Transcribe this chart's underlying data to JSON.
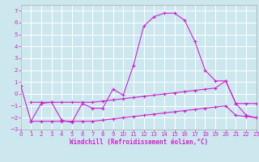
{
  "xlabel": "Windchill (Refroidissement éolien,°C)",
  "bg_color": "#cce8ee",
  "grid_color": "#ffffff",
  "line_color": "#cc22cc",
  "xlim": [
    0,
    23
  ],
  "ylim": [
    -3,
    7.5
  ],
  "xticks": [
    0,
    1,
    2,
    3,
    4,
    5,
    6,
    7,
    8,
    9,
    10,
    11,
    12,
    13,
    14,
    15,
    16,
    17,
    18,
    19,
    20,
    21,
    22,
    23
  ],
  "yticks": [
    -3,
    -2,
    -1,
    0,
    1,
    2,
    3,
    4,
    5,
    6,
    7
  ],
  "curve1_x": [
    0,
    1,
    2,
    3,
    4,
    5,
    6,
    7,
    8,
    9,
    10,
    11,
    12,
    13,
    14,
    15,
    16,
    17,
    18,
    19,
    20,
    21,
    22,
    23
  ],
  "curve1_y": [
    0.7,
    -2.3,
    -0.8,
    -0.7,
    -2.2,
    -2.4,
    -0.8,
    -1.2,
    -1.2,
    0.4,
    -0.1,
    2.4,
    5.7,
    6.5,
    6.8,
    6.8,
    6.2,
    4.4,
    2.0,
    1.1,
    1.1,
    -0.8,
    -1.8,
    -2.0
  ],
  "curve2_x": [
    1,
    2,
    3,
    4,
    5,
    6,
    7,
    8,
    9,
    10,
    11,
    12,
    13,
    14,
    15,
    16,
    17,
    18,
    19,
    20,
    21,
    22,
    23
  ],
  "curve2_y": [
    -0.7,
    -0.7,
    -0.7,
    -0.7,
    -0.7,
    -0.7,
    -0.7,
    -0.6,
    -0.5,
    -0.4,
    -0.3,
    -0.2,
    -0.1,
    0.0,
    0.1,
    0.2,
    0.3,
    0.4,
    0.5,
    1.1,
    -0.8,
    -0.8,
    -0.8
  ],
  "curve3_x": [
    1,
    2,
    3,
    4,
    5,
    6,
    7,
    8,
    9,
    10,
    11,
    12,
    13,
    14,
    15,
    16,
    17,
    18,
    19,
    20,
    21,
    22,
    23
  ],
  "curve3_y": [
    -2.3,
    -2.3,
    -2.3,
    -2.3,
    -2.3,
    -2.3,
    -2.3,
    -2.2,
    -2.1,
    -2.0,
    -1.9,
    -1.8,
    -1.7,
    -1.6,
    -1.5,
    -1.4,
    -1.3,
    -1.2,
    -1.1,
    -1.0,
    -1.8,
    -1.9,
    -2.0
  ]
}
